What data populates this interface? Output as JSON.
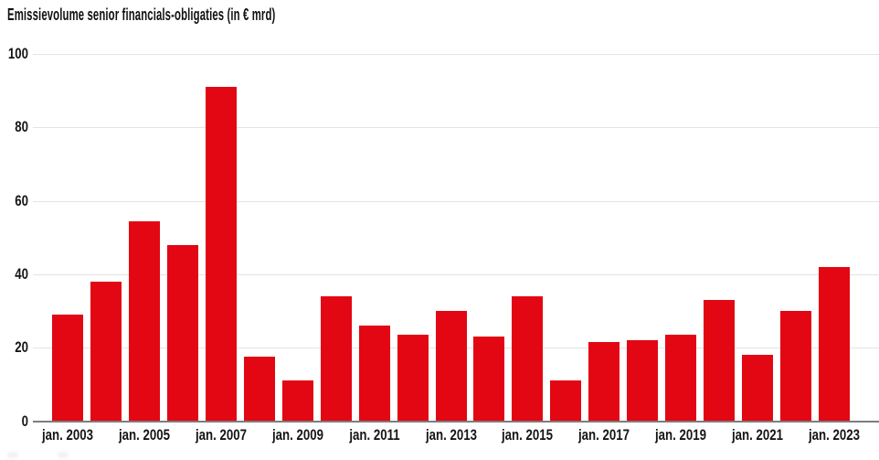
{
  "chart_data": {
    "type": "bar",
    "title": "Emissievolume senior financials-obligaties (in € mrd)",
    "xlabel": "",
    "ylabel": "",
    "categories": [
      2003,
      2004,
      2005,
      2006,
      2007,
      2008,
      2009,
      2010,
      2011,
      2012,
      2013,
      2014,
      2015,
      2016,
      2017,
      2018,
      2019,
      2020,
      2021,
      2022,
      2023
    ],
    "values": [
      29,
      38,
      54.5,
      48,
      91,
      17.5,
      11,
      34,
      26,
      23.5,
      30,
      23,
      34,
      11,
      21.5,
      22,
      23.5,
      33,
      18,
      30,
      42
    ],
    "xtick_labels": [
      "jan. 2003",
      "jan. 2005",
      "jan. 2007",
      "jan. 2009",
      "jan. 2011",
      "jan. 2013",
      "jan. 2015",
      "jan. 2017",
      "jan. 2019",
      "jan. 2021",
      "jan. 2023"
    ],
    "yticks": [
      0,
      20,
      40,
      60,
      80,
      100
    ],
    "ylim": [
      0,
      100
    ],
    "grid": true,
    "legend_position": "none",
    "colors": {
      "bar": "#e30613",
      "grid": "#e3e3e3",
      "axis": "#7d7d7d",
      "text": "#161616"
    }
  }
}
